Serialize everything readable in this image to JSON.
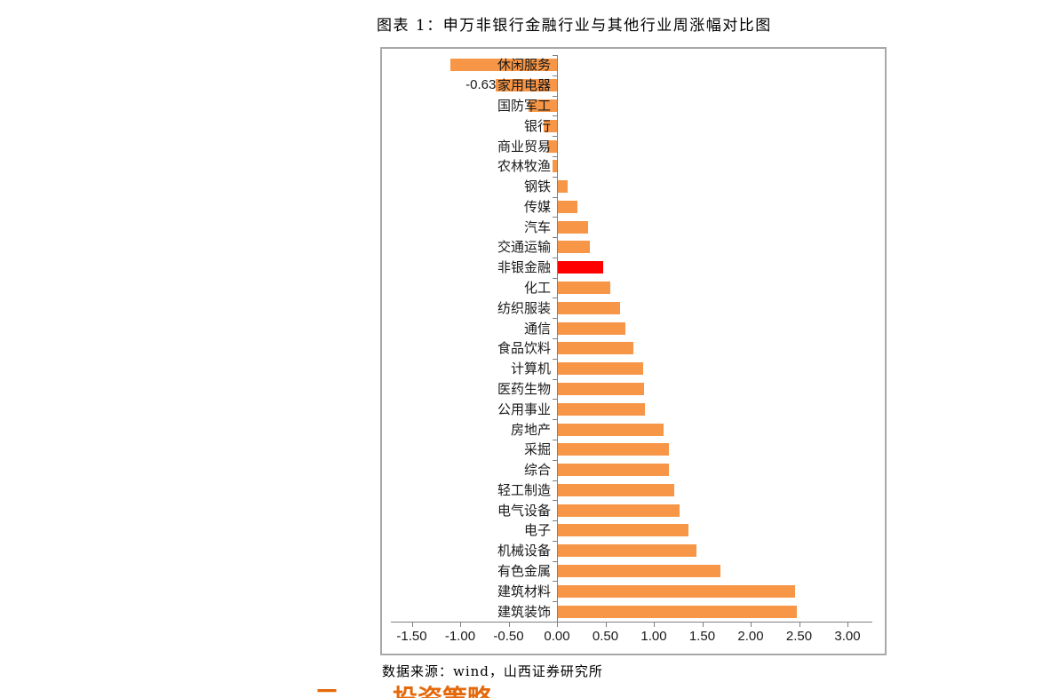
{
  "title": "图表 1：申万非银行金融行业与其他行业周涨幅对比图",
  "chart_data": {
    "type": "bar",
    "orientation": "horizontal",
    "title": "图表 1：申万非银行金融行业与其他行业周涨幅对比图",
    "categories": [
      "休闲服务",
      "家用电器",
      "国防军工",
      "银行",
      "商业贸易",
      "农林牧渔",
      "钢铁",
      "传媒",
      "汽车",
      "交通运输",
      "非银金融",
      "化工",
      "纺织服装",
      "通信",
      "食品饮料",
      "计算机",
      "医药生物",
      "公用事业",
      "房地产",
      "采掘",
      "综合",
      "轻工制造",
      "电气设备",
      "电子",
      "机械设备",
      "有色金属",
      "建筑材料",
      "建筑装饰"
    ],
    "values": [
      -1.1,
      -0.63,
      -0.29,
      -0.14,
      -0.1,
      -0.05,
      0.1,
      0.2,
      0.31,
      0.33,
      0.47,
      0.54,
      0.64,
      0.7,
      0.78,
      0.88,
      0.89,
      0.9,
      1.09,
      1.15,
      1.15,
      1.2,
      1.26,
      1.35,
      1.43,
      1.68,
      2.45,
      2.47
    ],
    "highlight": {
      "category": "非银金融",
      "color": "#fe0000"
    },
    "data_labels": [
      {
        "category": "家用电器",
        "text": "-0.63"
      }
    ],
    "x_ticks": [
      "-1.50",
      "-1.00",
      "-0.50",
      "0.00",
      "0.50",
      "1.00",
      "1.50",
      "2.00",
      "2.50",
      "3.00"
    ],
    "x_tick_values": [
      -1.5,
      -1.0,
      -0.5,
      0.0,
      0.5,
      1.0,
      1.5,
      2.0,
      2.5,
      3.0
    ],
    "xlim": [
      -1.5,
      3.0
    ],
    "grid": "off",
    "legend": "none",
    "colors": {
      "bar": "#f79646",
      "highlight": "#fe0000",
      "axis": "#7f7f7f",
      "border": "#a8a8a8"
    }
  },
  "caption": "数据来源：wind，山西证券研究所",
  "section_heading": {
    "numeral": "二、",
    "text": "投资策略"
  }
}
